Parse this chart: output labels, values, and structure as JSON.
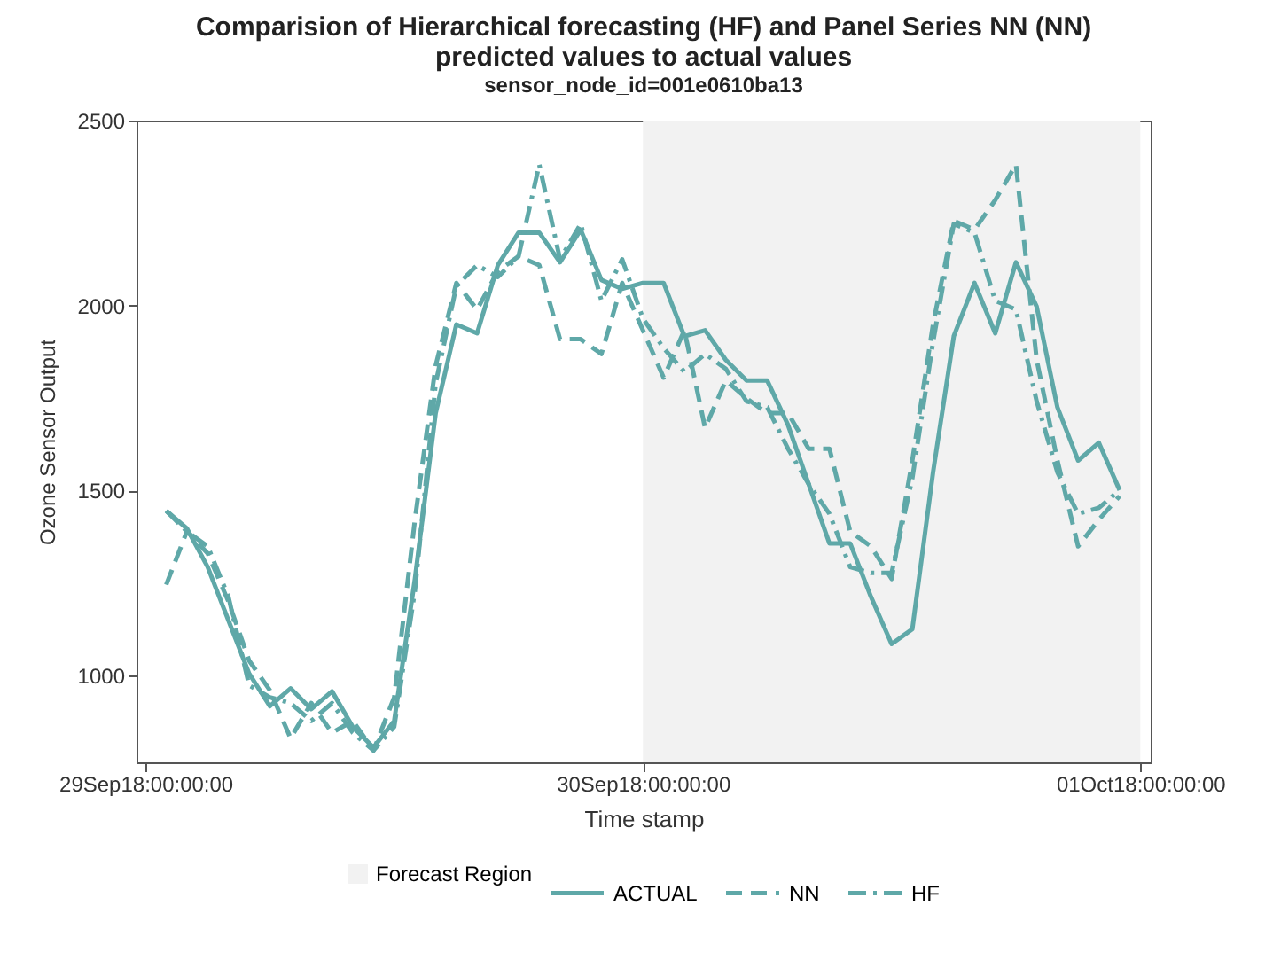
{
  "chart_data": {
    "type": "line",
    "title": "Comparision of Hierarchical forecasting (HF) and Panel Series NN (NN) predicted values to actual values",
    "subtitle": "sensor_node_id=001e0610ba13",
    "xlabel": "Time stamp",
    "ylabel": "Ozone Sensor Output",
    "x": [
      "2018-09-29T01:00",
      "2018-09-29T02:00",
      "2018-09-29T03:00",
      "2018-09-29T04:00",
      "2018-09-29T05:00",
      "2018-09-29T06:00",
      "2018-09-29T07:00",
      "2018-09-29T08:00",
      "2018-09-29T09:00",
      "2018-09-29T10:00",
      "2018-09-29T11:00",
      "2018-09-29T12:00",
      "2018-09-29T13:00",
      "2018-09-29T14:00",
      "2018-09-29T15:00",
      "2018-09-29T16:00",
      "2018-09-29T17:00",
      "2018-09-29T18:00",
      "2018-09-29T19:00",
      "2018-09-29T20:00",
      "2018-09-29T21:00",
      "2018-09-29T22:00",
      "2018-09-29T23:00",
      "2018-09-30T00:00",
      "2018-09-30T01:00",
      "2018-09-30T02:00",
      "2018-09-30T03:00",
      "2018-09-30T04:00",
      "2018-09-30T05:00",
      "2018-09-30T06:00",
      "2018-09-30T07:00",
      "2018-09-30T08:00",
      "2018-09-30T09:00",
      "2018-09-30T10:00",
      "2018-09-30T11:00",
      "2018-09-30T12:00",
      "2018-09-30T13:00",
      "2018-09-30T14:00",
      "2018-09-30T15:00",
      "2018-09-30T16:00",
      "2018-09-30T17:00",
      "2018-09-30T18:00",
      "2018-09-30T19:00",
      "2018-09-30T20:00",
      "2018-09-30T21:00",
      "2018-09-30T22:00",
      "2018-09-30T23:00"
    ],
    "series": [
      {
        "name": "ACTUAL",
        "color": "#5fa8a8",
        "line_style": "solid",
        "values": [
          1445,
          1397,
          1293,
          1149,
          1005,
          917,
          965,
          909,
          957,
          861,
          805,
          877,
          1261,
          1709,
          1949,
          1925,
          2109,
          2197,
          2197,
          2117,
          2205,
          2069,
          2045,
          2061,
          2061,
          1917,
          1933,
          1853,
          1797,
          1797,
          1677,
          1517,
          1357,
          1357,
          1213,
          1085,
          1125,
          1549,
          1917,
          2061,
          1925,
          2117,
          1997,
          1725,
          1581,
          1629,
          1501
        ]
      },
      {
        "name": "NN",
        "color": "#5fa8a8",
        "line_style": "dashed",
        "values": [
          1245,
          1390,
          1330,
          1200,
          1040,
          960,
          830,
          925,
          845,
          877,
          797,
          941,
          1421,
          1837,
          2061,
          1989,
          2093,
          2133,
          2109,
          1909,
          1909,
          1869,
          2061,
          1933,
          1805,
          1933,
          1669,
          1797,
          1749,
          1709,
          1709,
          1613,
          1613,
          1389,
          1349,
          1261,
          1581,
          1949,
          2229,
          2205,
          2285,
          2381,
          1853,
          1581,
          1349,
          1421,
          1485
        ]
      },
      {
        "name": "HF",
        "color": "#5fa8a8",
        "line_style": "dashdot",
        "values": [
          1445,
          1389,
          1349,
          1213,
          973,
          941,
          925,
          877,
          925,
          845,
          797,
          861,
          1229,
          1789,
          2053,
          2109,
          2077,
          2133,
          2381,
          2125,
          2221,
          2013,
          2125,
          1965,
          1885,
          1821,
          1869,
          1829,
          1741,
          1725,
          1613,
          1517,
          1437,
          1293,
          1277,
          1277,
          1533,
          1901,
          2221,
          2197,
          2013,
          1989,
          1741,
          1549,
          1437,
          1453,
          1501
        ]
      }
    ],
    "xlim": [
      "2018-09-28T23:34",
      "2018-10-01T00:30"
    ],
    "xticks": [
      {
        "value": "2018-09-29",
        "label": "29Sep18:00:00:00"
      },
      {
        "value": "2018-09-30",
        "label": "30Sep18:00:00:00"
      },
      {
        "value": "2018-10-01",
        "label": "01Oct18:00:00:00"
      }
    ],
    "ylim": [
      765,
      2500
    ],
    "yticks": [
      1000,
      1500,
      2000,
      2500
    ],
    "bands": [
      {
        "axis": "x",
        "from": "2018-09-30",
        "to": "2018-10-01",
        "label": "Forecast Region",
        "color": "#f2f2f2"
      }
    ],
    "grid": false,
    "legend": "bottom",
    "marker": "none"
  }
}
